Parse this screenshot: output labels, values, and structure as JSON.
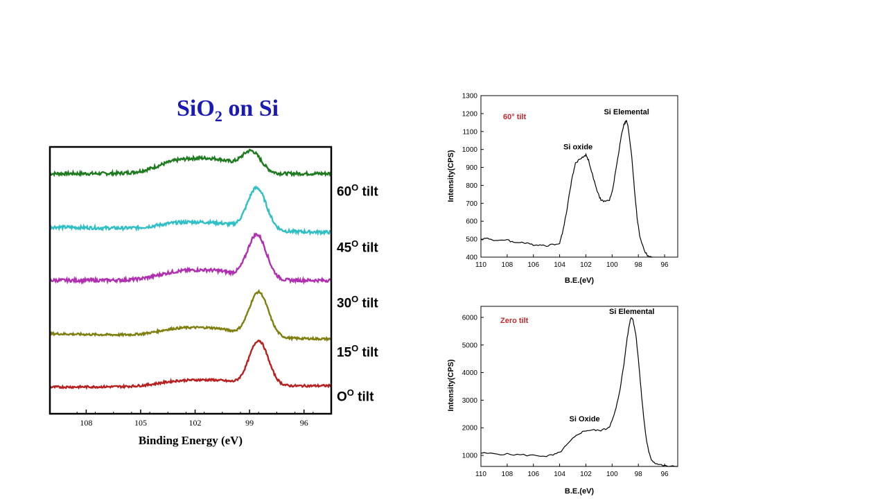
{
  "slide_title": {
    "main": "SiO",
    "sub": "2",
    "rest": " on Si"
  },
  "chart_data": [
    {
      "type": "line",
      "xlabel": "Binding Energy (eV)",
      "ylabel": "",
      "xlim": [
        110,
        94.5
      ],
      "x_ticks": [
        108,
        105,
        102,
        99,
        96
      ],
      "x_tick_labels": [
        "108",
        "105",
        "102",
        "99",
        "96"
      ],
      "y_ticks_shown": false,
      "grid": false,
      "series": [
        {
          "name": "60O tilt",
          "label_num": "60",
          "label_sup": "O",
          "label_rest": " tilt",
          "color": "#1e7a1e",
          "offset": 0.9,
          "peak_x": 98.9,
          "peak_h": 0.08,
          "shoulder_x": 102.0,
          "shoulder_h": 0.06,
          "slope": 0.0,
          "noise": 0.006
        },
        {
          "name": "45O tilt",
          "label_num": "45",
          "label_sup": "O",
          "label_rest": " tilt",
          "color": "#2fbfc4",
          "offset": 0.7,
          "peak_x": 98.6,
          "peak_h": 0.16,
          "shoulder_x": 101.8,
          "shoulder_h": 0.03,
          "slope": -0.02,
          "noise": 0.006
        },
        {
          "name": "30O tilt",
          "label_num": "30",
          "label_sup": "O",
          "label_rest": " tilt",
          "color": "#b02fb0",
          "offset": 0.5,
          "peak_x": 98.6,
          "peak_h": 0.17,
          "shoulder_x": 101.5,
          "shoulder_h": 0.04,
          "slope": 0.0,
          "noise": 0.006
        },
        {
          "name": "15O tilt",
          "label_num": "15",
          "label_sup": "O",
          "label_rest": " tilt",
          "color": "#7f7f10",
          "offset": 0.3,
          "peak_x": 98.5,
          "peak_h": 0.17,
          "shoulder_x": 101.5,
          "shoulder_h": 0.035,
          "slope": -0.02,
          "noise": 0.004
        },
        {
          "name": "0O tilt",
          "label_num": "O",
          "label_sup": "O",
          "label_rest": " tilt",
          "color": "#b81f1f",
          "offset": 0.1,
          "peak_x": 98.5,
          "peak_h": 0.17,
          "shoulder_x": 101.0,
          "shoulder_h": 0.025,
          "slope": 0.005,
          "noise": 0.004
        }
      ]
    },
    {
      "type": "line",
      "title": "60° tilt",
      "xlabel": "B.E.(eV)",
      "ylabel": "Intensity(CPS)",
      "xlim": [
        110,
        95
      ],
      "ylim": [
        400,
        1300
      ],
      "x_ticks": [
        110,
        108,
        106,
        104,
        102,
        100,
        98,
        96
      ],
      "y_ticks": [
        400,
        500,
        600,
        700,
        800,
        900,
        1000,
        1100,
        1200,
        1300
      ],
      "annotations": [
        {
          "text": "Si oxide",
          "x": 102.6,
          "y": 1000
        },
        {
          "text": "Si Elemental",
          "x": 98.9,
          "y": 1195
        }
      ],
      "series": [
        {
          "x": [
            110,
            109.5,
            109,
            108.5,
            108,
            107.5,
            107,
            106.5,
            106,
            105.5,
            105,
            104.5,
            104,
            103.8,
            103.5,
            103.2,
            103,
            102.8,
            102.5,
            102.2,
            102,
            101.8,
            101.5,
            101.2,
            101,
            100.8,
            100.5,
            100.2,
            100,
            99.8,
            99.5,
            99.3,
            99.1,
            99,
            98.9,
            98.8,
            98.7,
            98.5,
            98.3,
            98.1,
            97.9,
            97.7,
            97.5,
            97.3,
            97.1,
            96.9
          ],
          "y": [
            500,
            505,
            495,
            490,
            500,
            480,
            485,
            475,
            470,
            468,
            465,
            470,
            480,
            530,
            640,
            780,
            860,
            920,
            945,
            960,
            970,
            940,
            860,
            780,
            740,
            715,
            710,
            720,
            760,
            850,
            980,
            1080,
            1140,
            1150,
            1160,
            1130,
            1080,
            960,
            780,
            620,
            520,
            470,
            430,
            410,
            400,
            395
          ]
        }
      ]
    },
    {
      "type": "line",
      "title": "Zero tilt",
      "xlabel": "B.E.(eV)",
      "ylabel": "Intensity(CPS)",
      "xlim": [
        110,
        95
      ],
      "ylim": [
        600,
        6400
      ],
      "x_ticks": [
        110,
        108,
        106,
        104,
        102,
        100,
        98,
        96
      ],
      "y_ticks": [
        1000,
        2000,
        3000,
        4000,
        5000,
        6000
      ],
      "annotations": [
        {
          "text": "Si Oxide",
          "x": 102.1,
          "y": 2230
        },
        {
          "text": "Si Elemental",
          "x": 98.5,
          "y": 6120
        }
      ],
      "series": [
        {
          "x": [
            110,
            109,
            108,
            107,
            106,
            105,
            104.5,
            104,
            103.5,
            103,
            102.5,
            102,
            101.5,
            101,
            100.5,
            100.2,
            100,
            99.7,
            99.4,
            99.1,
            98.9,
            98.7,
            98.6,
            98.5,
            98.4,
            98.2,
            98,
            97.8,
            97.6,
            97.4,
            97.2,
            97,
            96.8,
            96.5,
            96,
            95.5,
            95
          ],
          "y": [
            1080,
            1060,
            1040,
            1020,
            1000,
            980,
            1010,
            1100,
            1350,
            1600,
            1800,
            1900,
            1920,
            1900,
            1950,
            2050,
            2250,
            2700,
            3400,
            4300,
            5100,
            5700,
            5950,
            6000,
            5900,
            5400,
            4500,
            3400,
            2400,
            1600,
            1100,
            850,
            750,
            680,
            620,
            600,
            580
          ]
        }
      ]
    }
  ]
}
